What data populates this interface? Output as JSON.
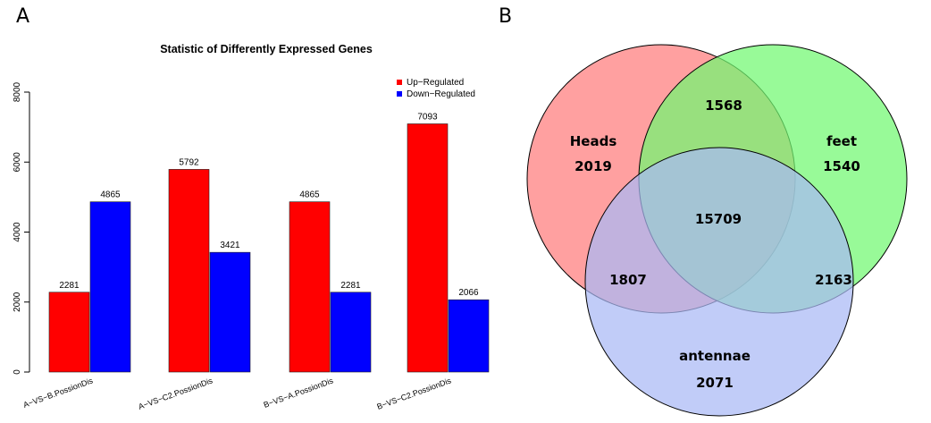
{
  "panels": {
    "a_label": "A",
    "b_label": "B"
  },
  "colors": {
    "up": "#ff0000",
    "down": "#0000ff",
    "heads": "#ff7b7b",
    "feet": "#70f870",
    "antennae": "#a9b9f5"
  },
  "chart_data": [
    {
      "type": "bar",
      "title": "Statistic of Differently Expressed Genes",
      "categories": [
        "A−VS−B.PossionDis",
        "A−VS−C2.PossionDis",
        "B−VS−A.PossionDis",
        "B−VS−C2.PossionDis"
      ],
      "series": [
        {
          "name": "Up−Regulated",
          "values": [
            2281,
            5792,
            4865,
            7093
          ]
        },
        {
          "name": "Down−Regulated",
          "values": [
            4865,
            3421,
            2281,
            2066
          ]
        }
      ],
      "ylim": [
        0,
        8000
      ],
      "yticks": [
        "0",
        "2000",
        "4000",
        "6000",
        "8000"
      ],
      "legend_position": "top-right",
      "grid": false
    },
    {
      "type": "venn",
      "sets": [
        "Heads",
        "feet",
        "antennae"
      ],
      "regions": {
        "heads_only": "2019",
        "feet_only": "1540",
        "antennae_only": "2071",
        "heads_feet": "1568",
        "heads_antennae": "1807",
        "feet_antennae": "2163",
        "all": "15709"
      }
    }
  ]
}
